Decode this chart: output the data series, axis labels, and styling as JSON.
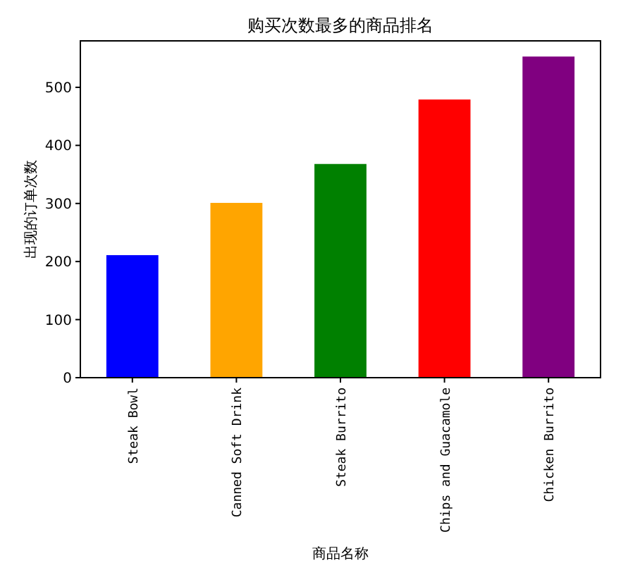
{
  "chart_data": {
    "type": "bar",
    "title": "购买次数最多的商品排名",
    "xlabel": "商品名称",
    "ylabel": "出现的订单次数",
    "categories": [
      "Steak Bowl",
      "Canned Soft Drink",
      "Steak Burrito",
      "Chips and Guacamole",
      "Chicken Burrito"
    ],
    "values": [
      211,
      301,
      368,
      479,
      553
    ],
    "colors": [
      "#0000ff",
      "#ffa500",
      "#008000",
      "#ff0000",
      "#800080"
    ],
    "ylim": [
      0,
      580
    ],
    "yticks": [
      0,
      100,
      200,
      300,
      400,
      500
    ],
    "grid": false
  }
}
